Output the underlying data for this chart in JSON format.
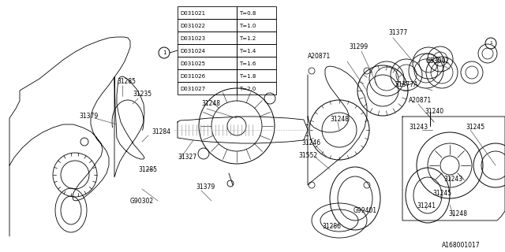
{
  "bg_color": "#ffffff",
  "lc": "#000000",
  "table": {
    "left_col": [
      "D031021",
      "D031022",
      "D031023",
      "D031024",
      "D031025",
      "D031026",
      "D031027"
    ],
    "right_col": [
      "T=0.8",
      "T=1.0",
      "T=1.2",
      "T=1.4",
      "T=1.6",
      "T=1.8",
      "T=2.0"
    ]
  },
  "ref": "A168001017"
}
